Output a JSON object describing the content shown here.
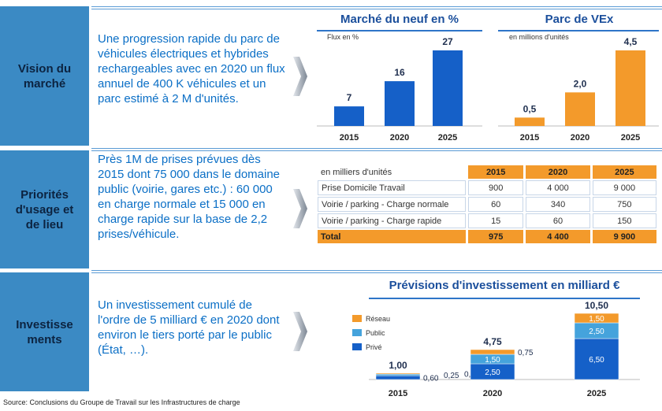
{
  "sections": [
    {
      "label": [
        "Vision du",
        "marché"
      ],
      "text": "Une progression rapide du parc de véhicules électriques et hybrides rechargeables avec en 2020 un flux annuel de 400 K véhicules et un parc estimé à 2 M d'unités."
    },
    {
      "label": [
        "Priorités",
        "d'usage et",
        "de lieu"
      ],
      "text": "Près 1M de prises prévues dès 2015 dont 75 000 dans le domaine public (voirie, gares etc.) : 60 000 en charge normale et 15 000 en charge rapide sur la base de 2,2 prises/véhicule."
    },
    {
      "label": [
        "Investisse",
        "ments"
      ],
      "text": "Un investissement cumulé de l'ordre de 5 milliard € en 2020 dont environ le tiers porté par le public (État, …)."
    }
  ],
  "table": {
    "header": [
      "en milliers d'unités",
      "2015",
      "2020",
      "2025"
    ],
    "rows": [
      [
        "Prise Domicile Travail",
        "900",
        "4 000",
        "9 000"
      ],
      [
        "Voirie / parking - Charge normale",
        "60",
        "340",
        "750"
      ],
      [
        "Voirie / parking - Charge rapide",
        "15",
        "60",
        "150"
      ]
    ],
    "total": [
      "Total",
      "975",
      "4 400",
      "9 900"
    ]
  },
  "chart_data": [
    {
      "type": "bar",
      "title": "Marché du neuf en %",
      "subtitle": "Flux en %",
      "categories": [
        "2015",
        "2020",
        "2025"
      ],
      "values": [
        7,
        16,
        27
      ],
      "color": "#1560c8"
    },
    {
      "type": "bar",
      "title": "Parc de VEx",
      "subtitle": "en millions d'unités",
      "categories": [
        "2015",
        "2020",
        "2025"
      ],
      "values": [
        0.5,
        2.0,
        4.5
      ],
      "value_labels": [
        "0,5",
        "2,0",
        "4,5"
      ],
      "color": "#f39a2b"
    },
    {
      "type": "stacked_bar",
      "title": "Prévisions d'investissement en milliard €",
      "categories": [
        "2015",
        "2020",
        "2025"
      ],
      "series": [
        {
          "name": "Privé",
          "color": "#1560c8",
          "values": [
            0.6,
            2.5,
            6.5
          ],
          "value_labels": [
            "0,60",
            "2,50",
            "6,50"
          ]
        },
        {
          "name": "Public",
          "color": "#45a3dc",
          "values": [
            0.25,
            1.5,
            2.5
          ],
          "value_labels": [
            "0,25",
            "1,50",
            "2,50"
          ]
        },
        {
          "name": "Réseau",
          "color": "#f39a2b",
          "values": [
            0.15,
            0.75,
            1.5
          ],
          "value_labels": [
            "0,15",
            "0,75",
            "1,50"
          ]
        }
      ],
      "totals": [
        1.0,
        4.75,
        10.5
      ],
      "total_labels": [
        "1,00",
        "4,75",
        "10,50"
      ]
    }
  ],
  "source": "Source: Conclusions du Groupe de Travail sur les Infrastructures de charge"
}
